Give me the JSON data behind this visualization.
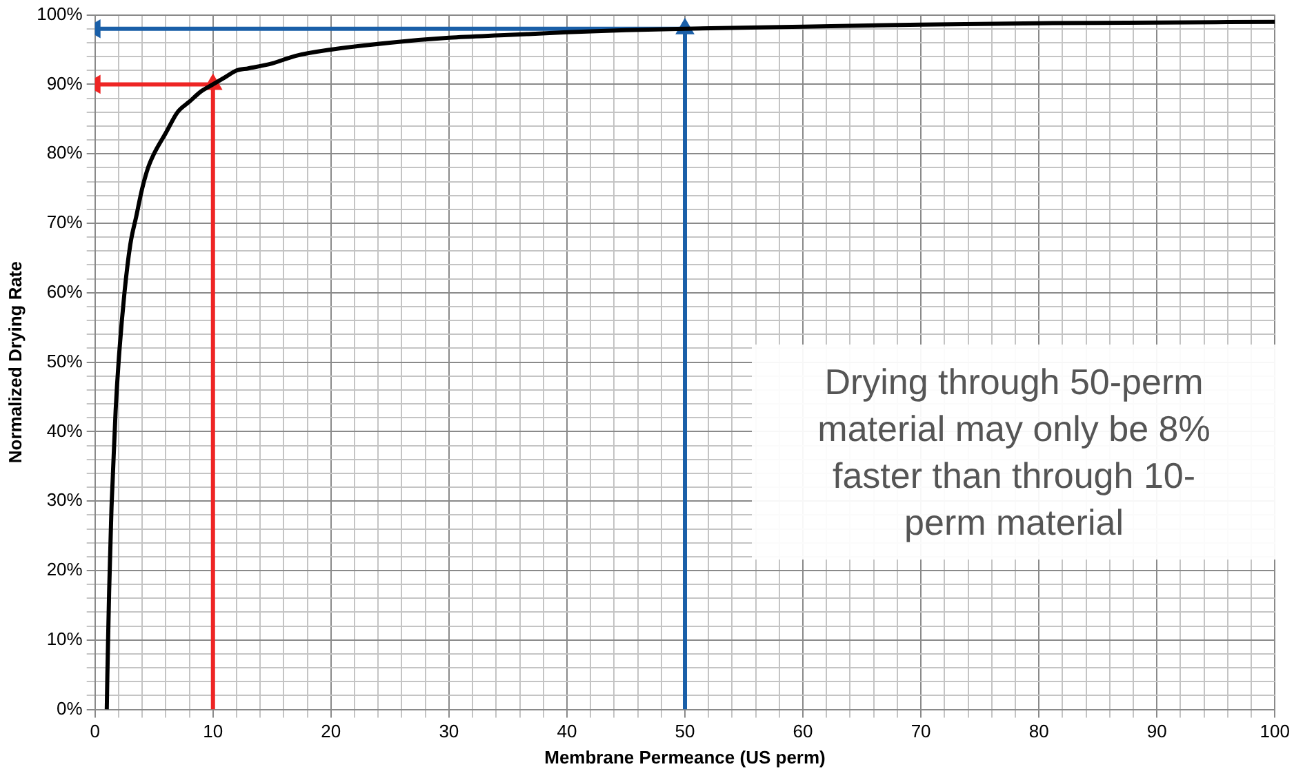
{
  "chart_data": {
    "type": "line",
    "xlabel": "Membrane Permeance (US perm)",
    "ylabel": "Normalized Drying Rate",
    "xlim": [
      0,
      100
    ],
    "ylim": [
      0,
      100
    ],
    "xticks": [
      0,
      {
        "value": 2,
        "label": null
      },
      {
        "value": 4,
        "label": null
      },
      {
        "value": 6,
        "label": null
      },
      {
        "value": 8,
        "label": null
      },
      10,
      {
        "value": 12,
        "label": null
      },
      {
        "value": 14,
        "label": null
      },
      {
        "value": 16,
        "label": null
      },
      {
        "value": 18,
        "label": null
      },
      20,
      {
        "value": 22,
        "label": null
      },
      {
        "value": 24,
        "label": null
      },
      {
        "value": 26,
        "label": null
      },
      {
        "value": 28,
        "label": null
      },
      30,
      {
        "value": 32,
        "label": null
      },
      {
        "value": 34,
        "label": null
      },
      {
        "value": 36,
        "label": null
      },
      {
        "value": 38,
        "label": null
      },
      40,
      {
        "value": 42,
        "label": null
      },
      {
        "value": 44,
        "label": null
      },
      {
        "value": 46,
        "label": null
      },
      {
        "value": 48,
        "label": null
      },
      50,
      {
        "value": 52,
        "label": null
      },
      {
        "value": 54,
        "label": null
      },
      {
        "value": 56,
        "label": null
      },
      {
        "value": 58,
        "label": null
      },
      60,
      {
        "value": 62,
        "label": null
      },
      {
        "value": 64,
        "label": null
      },
      {
        "value": 66,
        "label": null
      },
      {
        "value": 68,
        "label": null
      },
      70,
      {
        "value": 72,
        "label": null
      },
      {
        "value": 74,
        "label": null
      },
      {
        "value": 76,
        "label": null
      },
      {
        "value": 78,
        "label": null
      },
      80,
      {
        "value": 82,
        "label": null
      },
      {
        "value": 84,
        "label": null
      },
      {
        "value": 86,
        "label": null
      },
      {
        "value": 88,
        "label": null
      },
      90,
      {
        "value": 92,
        "label": null
      },
      {
        "value": 94,
        "label": null
      },
      {
        "value": 96,
        "label": null
      },
      {
        "value": 98,
        "label": null
      },
      100
    ],
    "yticks": [
      {
        "value": 0,
        "label": "0%"
      },
      {
        "value": 2,
        "label": null
      },
      {
        "value": 4,
        "label": null
      },
      {
        "value": 6,
        "label": null
      },
      {
        "value": 8,
        "label": null
      },
      {
        "value": 10,
        "label": "10%"
      },
      {
        "value": 12,
        "label": null
      },
      {
        "value": 14,
        "label": null
      },
      {
        "value": 16,
        "label": null
      },
      {
        "value": 18,
        "label": null
      },
      {
        "value": 20,
        "label": "20%"
      },
      {
        "value": 22,
        "label": null
      },
      {
        "value": 24,
        "label": null
      },
      {
        "value": 26,
        "label": null
      },
      {
        "value": 28,
        "label": null
      },
      {
        "value": 30,
        "label": "30%"
      },
      {
        "value": 32,
        "label": null
      },
      {
        "value": 34,
        "label": null
      },
      {
        "value": 36,
        "label": null
      },
      {
        "value": 38,
        "label": null
      },
      {
        "value": 40,
        "label": "40%"
      },
      {
        "value": 42,
        "label": null
      },
      {
        "value": 44,
        "label": null
      },
      {
        "value": 46,
        "label": null
      },
      {
        "value": 48,
        "label": null
      },
      {
        "value": 50,
        "label": "50%"
      },
      {
        "value": 52,
        "label": null
      },
      {
        "value": 54,
        "label": null
      },
      {
        "value": 56,
        "label": null
      },
      {
        "value": 58,
        "label": null
      },
      {
        "value": 60,
        "label": "60%"
      },
      {
        "value": 62,
        "label": null
      },
      {
        "value": 64,
        "label": null
      },
      {
        "value": 66,
        "label": null
      },
      {
        "value": 68,
        "label": null
      },
      {
        "value": 70,
        "label": "70%"
      },
      {
        "value": 72,
        "label": null
      },
      {
        "value": 74,
        "label": null
      },
      {
        "value": 76,
        "label": null
      },
      {
        "value": 78,
        "label": null
      },
      {
        "value": 80,
        "label": "80%"
      },
      {
        "value": 82,
        "label": null
      },
      {
        "value": 84,
        "label": null
      },
      {
        "value": 86,
        "label": null
      },
      {
        "value": 88,
        "label": null
      },
      {
        "value": 90,
        "label": "90%"
      },
      {
        "value": 92,
        "label": null
      },
      {
        "value": 94,
        "label": null
      },
      {
        "value": 96,
        "label": null
      },
      {
        "value": 98,
        "label": null
      },
      {
        "value": 100,
        "label": "100%"
      }
    ],
    "grid": true,
    "legend": false,
    "line_style": "solid",
    "annotations": [
      "Drying through 50-perm material may only be 8% faster than through 10-perm material"
    ],
    "series": [
      {
        "color": "#000000",
        "marker": "none",
        "x": [
          1,
          1.05,
          1.1,
          1.2,
          1.3,
          1.4,
          1.5,
          1.75,
          2,
          2.5,
          3,
          3.5,
          4,
          4.5,
          5,
          6,
          7,
          8,
          9,
          10,
          11,
          12,
          13,
          15,
          17,
          20,
          25,
          30,
          35,
          40,
          45,
          50,
          60,
          70,
          80,
          90,
          100
        ],
        "values": [
          0,
          5,
          9,
          17,
          23,
          29,
          33,
          43,
          50,
          60,
          67,
          71,
          75,
          78,
          80,
          83,
          86,
          87.5,
          89,
          90,
          91,
          92,
          92.3,
          93,
          94.1,
          95,
          96,
          96.7,
          97.1,
          97.5,
          97.8,
          98,
          98.3,
          98.6,
          98.8,
          98.9,
          99
        ]
      },
      {
        "color": "#ee2524",
        "marker": "triangle",
        "x": [
          10,
          10,
          0
        ],
        "values": [
          0,
          90,
          90
        ]
      },
      {
        "color": "#1a5fa8",
        "marker": "triangle",
        "x": [
          50,
          50,
          0
        ],
        "values": [
          0,
          98,
          98
        ]
      }
    ]
  }
}
